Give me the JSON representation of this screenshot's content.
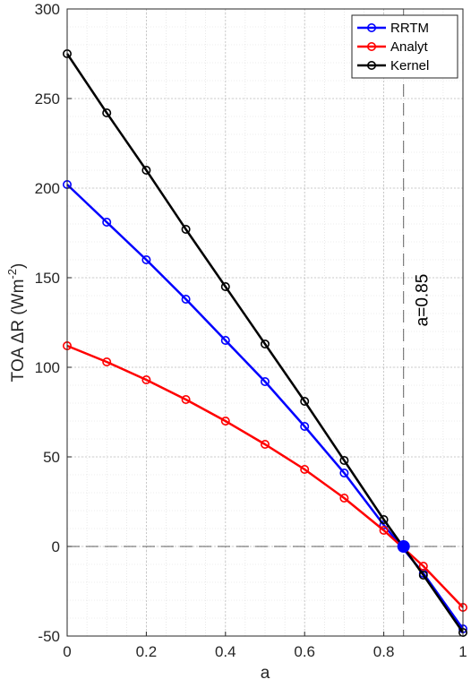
{
  "chart_data": {
    "type": "line",
    "title": "",
    "xlabel": "a",
    "ylabel_main": "TOA ",
    "ylabel_delta": "ΔR",
    "ylabel_unit_open": " (Wm",
    "ylabel_sup": "-2",
    "ylabel_unit_close": ")",
    "xlim": [
      0,
      1
    ],
    "ylim": [
      -50,
      300
    ],
    "x_ticks": [
      0,
      0.2,
      0.4,
      0.6,
      0.8,
      1
    ],
    "x_tick_labels": [
      "0",
      "0.2",
      "0.4",
      "0.6",
      "0.8",
      "1"
    ],
    "y_ticks": [
      -50,
      0,
      50,
      100,
      150,
      200,
      250,
      300
    ],
    "y_tick_labels": [
      "-50",
      "0",
      "50",
      "100",
      "150",
      "200",
      "250",
      "300"
    ],
    "grid": true,
    "minor_grid": true,
    "legend_position": "top-right",
    "x": [
      0,
      0.1,
      0.2,
      0.3,
      0.4,
      0.5,
      0.6,
      0.7,
      0.8,
      0.9,
      1.0
    ],
    "series": [
      {
        "name": "RRTM",
        "color": "#0000ff",
        "values": [
          202,
          181,
          160,
          138,
          115,
          92,
          67,
          41,
          12,
          -15,
          -46
        ]
      },
      {
        "name": "Analyt",
        "color": "#ff0000",
        "values": [
          112,
          103,
          93,
          82,
          70,
          57,
          43,
          27,
          9,
          -11,
          -34
        ]
      },
      {
        "name": "Kernel",
        "color": "#000000",
        "values": [
          275,
          242,
          210,
          177,
          145,
          113,
          81,
          48,
          15,
          -16,
          -48
        ]
      }
    ],
    "reference_lines": [
      {
        "orientation": "vertical",
        "value": 0.85,
        "label": "a=0.85",
        "color": "#000000"
      },
      {
        "orientation": "horizontal",
        "value": 0,
        "color": "#000000"
      }
    ],
    "highlight_point": {
      "x": 0.85,
      "y": 0,
      "color": "#0000ff"
    }
  }
}
